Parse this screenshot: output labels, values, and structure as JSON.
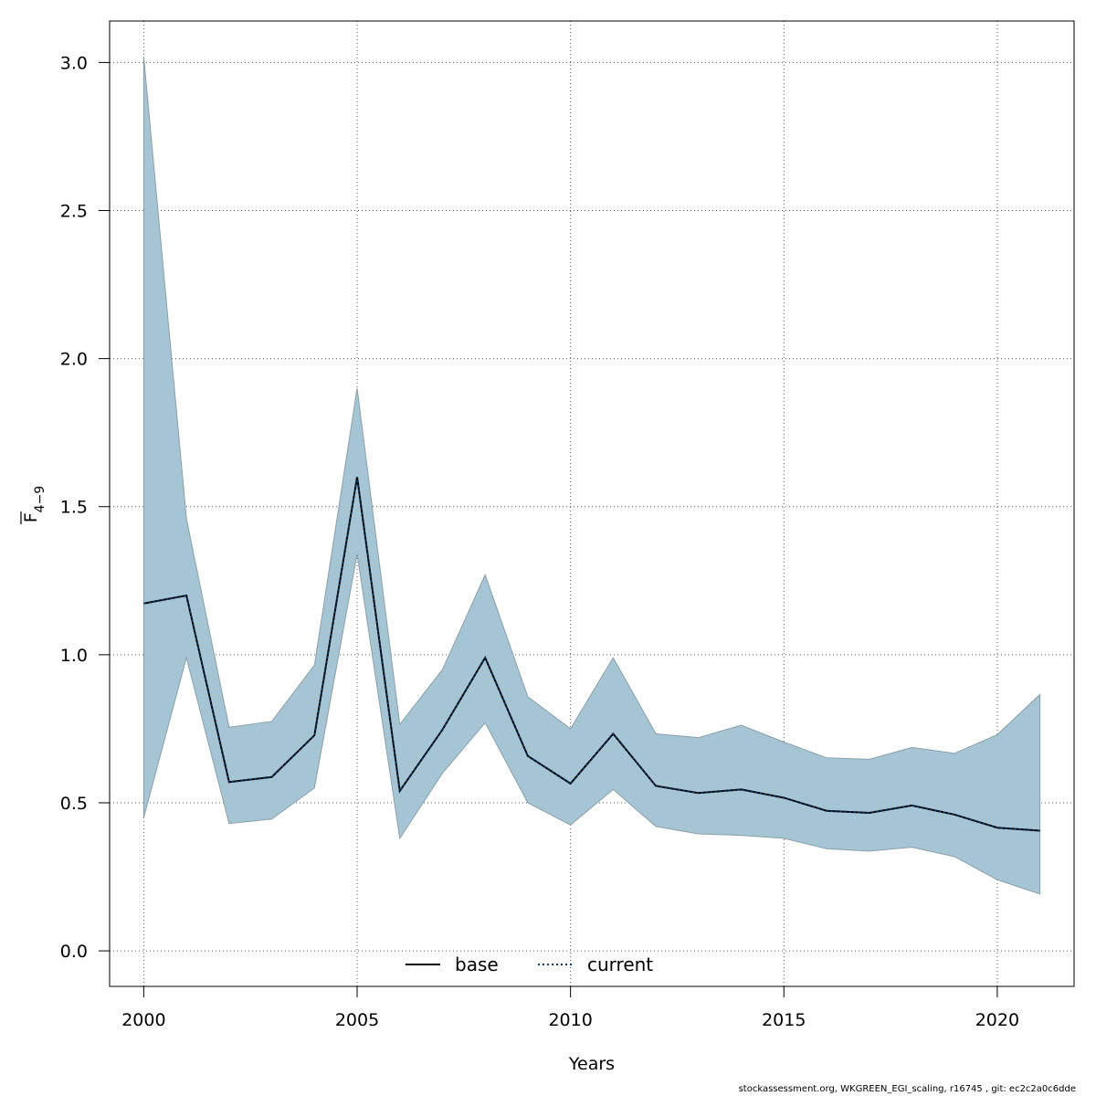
{
  "chart_data": {
    "type": "area",
    "xlabel": "Years",
    "ylabel_main": "F",
    "ylabel_sub": "4−9",
    "xlim": [
      1999.2,
      2021.8
    ],
    "ylim": [
      -0.12,
      3.14
    ],
    "xticks": [
      2000,
      2005,
      2010,
      2015,
      2020
    ],
    "yticks": [
      0.0,
      0.5,
      1.0,
      1.5,
      2.0,
      2.5,
      3.0
    ],
    "ytick_labels": [
      "0.0",
      "0.5",
      "1.0",
      "1.5",
      "2.0",
      "2.5",
      "3.0"
    ],
    "grid": true,
    "legend_position": "bottom-center",
    "band_color": "#a5c4d4",
    "band_edge_color": "#8aa0ab",
    "x": [
      2000,
      2001,
      2002,
      2003,
      2004,
      2005,
      2006,
      2007,
      2008,
      2009,
      2010,
      2011,
      2012,
      2013,
      2014,
      2015,
      2016,
      2017,
      2018,
      2019,
      2020,
      2021
    ],
    "band": {
      "lower": [
        0.45,
        0.99,
        0.43,
        0.445,
        0.55,
        1.34,
        0.38,
        0.6,
        0.77,
        0.5,
        0.425,
        0.545,
        0.42,
        0.395,
        0.39,
        0.38,
        0.345,
        0.337,
        0.35,
        0.318,
        0.24,
        0.192
      ],
      "upper": [
        3.02,
        1.46,
        0.755,
        0.775,
        0.965,
        1.9,
        0.765,
        0.95,
        1.27,
        0.858,
        0.75,
        0.99,
        0.733,
        0.72,
        0.762,
        0.705,
        0.652,
        0.647,
        0.687,
        0.667,
        0.73,
        0.866
      ]
    },
    "series": [
      {
        "name": "base",
        "color": "#000000",
        "style": "solid",
        "values": [
          1.173,
          1.2,
          0.57,
          0.587,
          0.728,
          1.6,
          0.54,
          0.747,
          0.99,
          0.658,
          0.565,
          0.733,
          0.557,
          0.533,
          0.545,
          0.517,
          0.473,
          0.466,
          0.491,
          0.46,
          0.416,
          0.406
        ]
      },
      {
        "name": "current",
        "color": "#0a3d6e",
        "style": "dotted",
        "values": [
          1.173,
          1.2,
          0.57,
          0.587,
          0.728,
          1.6,
          0.54,
          0.747,
          0.99,
          0.658,
          0.565,
          0.733,
          0.557,
          0.533,
          0.545,
          0.517,
          0.473,
          0.466,
          0.491,
          0.46,
          0.416,
          0.406
        ]
      }
    ]
  },
  "footer_text": "stockassessment.org, WKGREEN_EGI_scaling, r16745 , git: ec2c2a0c6dde"
}
